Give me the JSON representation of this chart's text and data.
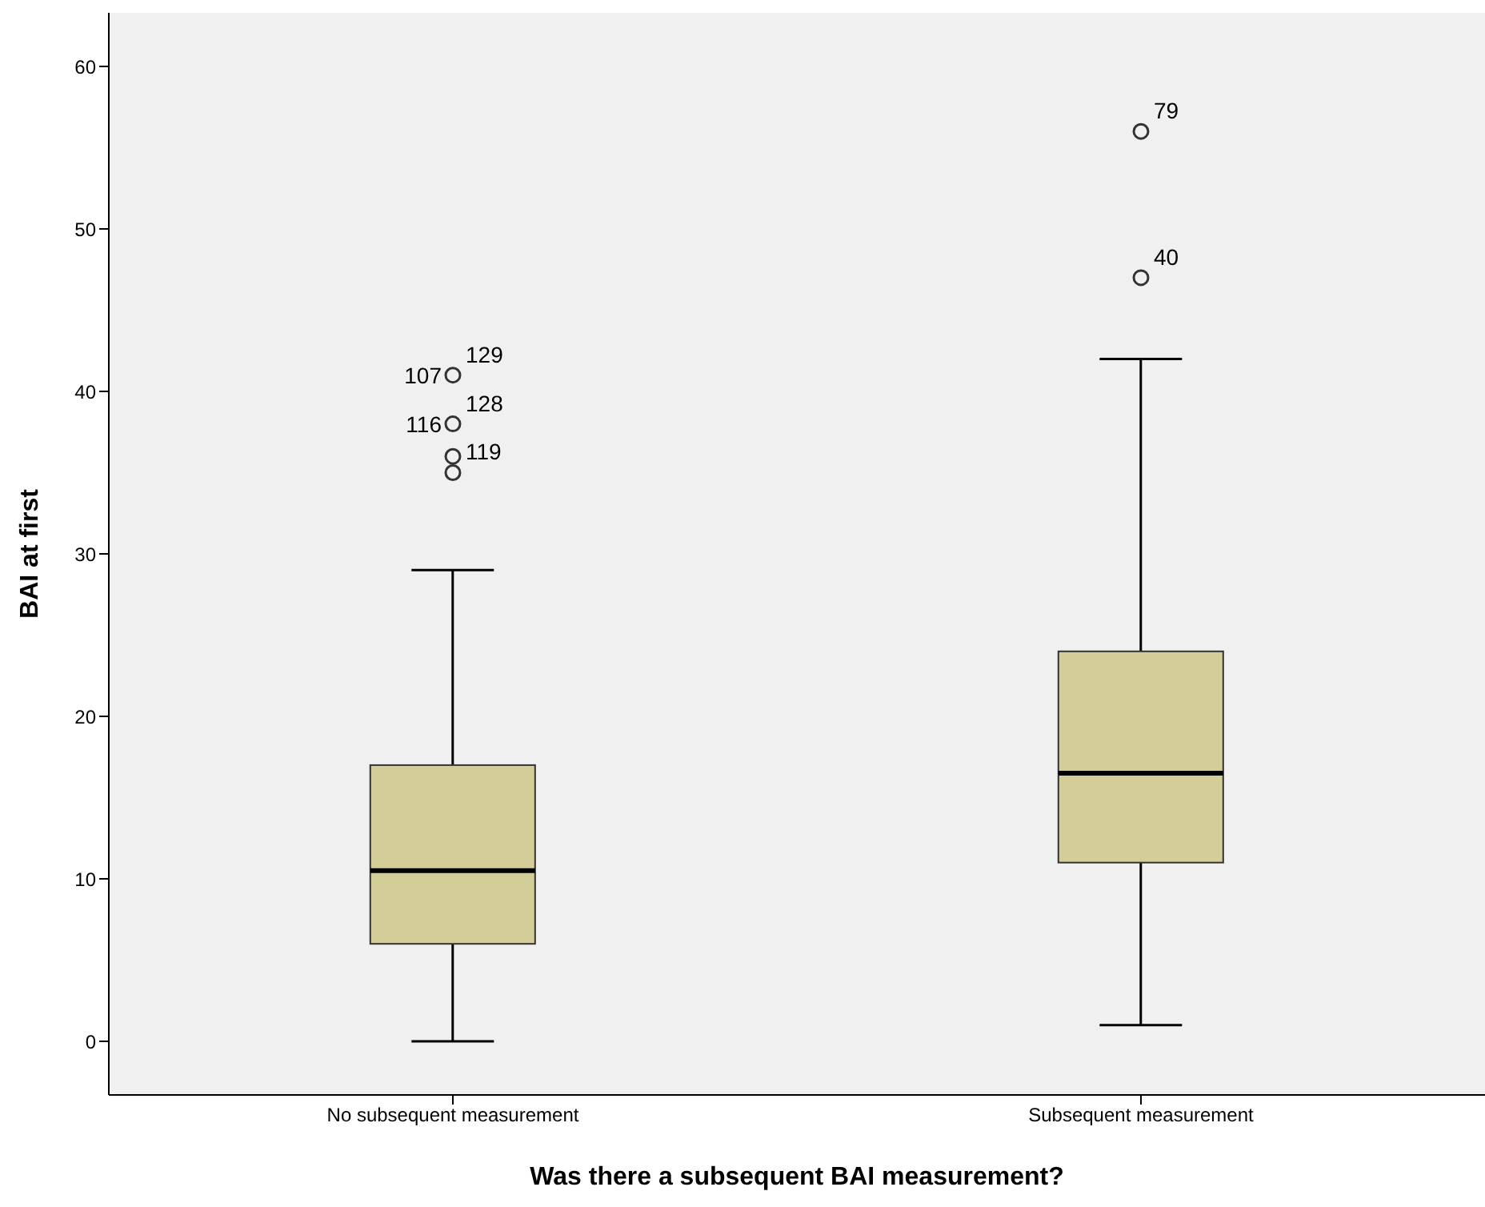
{
  "chart_data": {
    "type": "box",
    "xlabel": "Was there a subsequent BAI measurement?",
    "ylabel": "BAI at first",
    "categories": [
      "No subsequent measurement",
      "Subsequent measurement"
    ],
    "boxes": [
      {
        "low": 0,
        "q1": 6,
        "median": 10.5,
        "q3": 17,
        "high": 29
      },
      {
        "low": 1,
        "q1": 11,
        "median": 16.5,
        "q3": 24,
        "high": 42
      }
    ],
    "color": "#d3ce98",
    "ylim": [
      -3.3,
      63.3
    ],
    "yticks": [
      0,
      10,
      20,
      30,
      40,
      50,
      60
    ],
    "grid": false,
    "series": [
      {
        "type": "scatter",
        "color": "#333333",
        "marker": "circle",
        "x": [
          "No subsequent measurement",
          "No subsequent measurement",
          "No subsequent measurement",
          "No subsequent measurement",
          "Subsequent measurement",
          "Subsequent measurement"
        ],
        "values": [
          41,
          38,
          36,
          35,
          56,
          47
        ]
      }
    ],
    "annotations": [
      {
        "text": "129",
        "x": "No subsequent measurement",
        "y": 41
      },
      {
        "text": "107",
        "x": "No subsequent measurement",
        "y": 41
      },
      {
        "text": "128",
        "x": "No subsequent measurement",
        "y": 38
      },
      {
        "text": "116",
        "x": "No subsequent measurement",
        "y": 38
      },
      {
        "text": "119",
        "x": "No subsequent measurement",
        "y": 35
      },
      {
        "text": "79",
        "x": "Subsequent measurement",
        "y": 56
      },
      {
        "text": "40",
        "x": "Subsequent measurement",
        "y": 47
      }
    ]
  }
}
